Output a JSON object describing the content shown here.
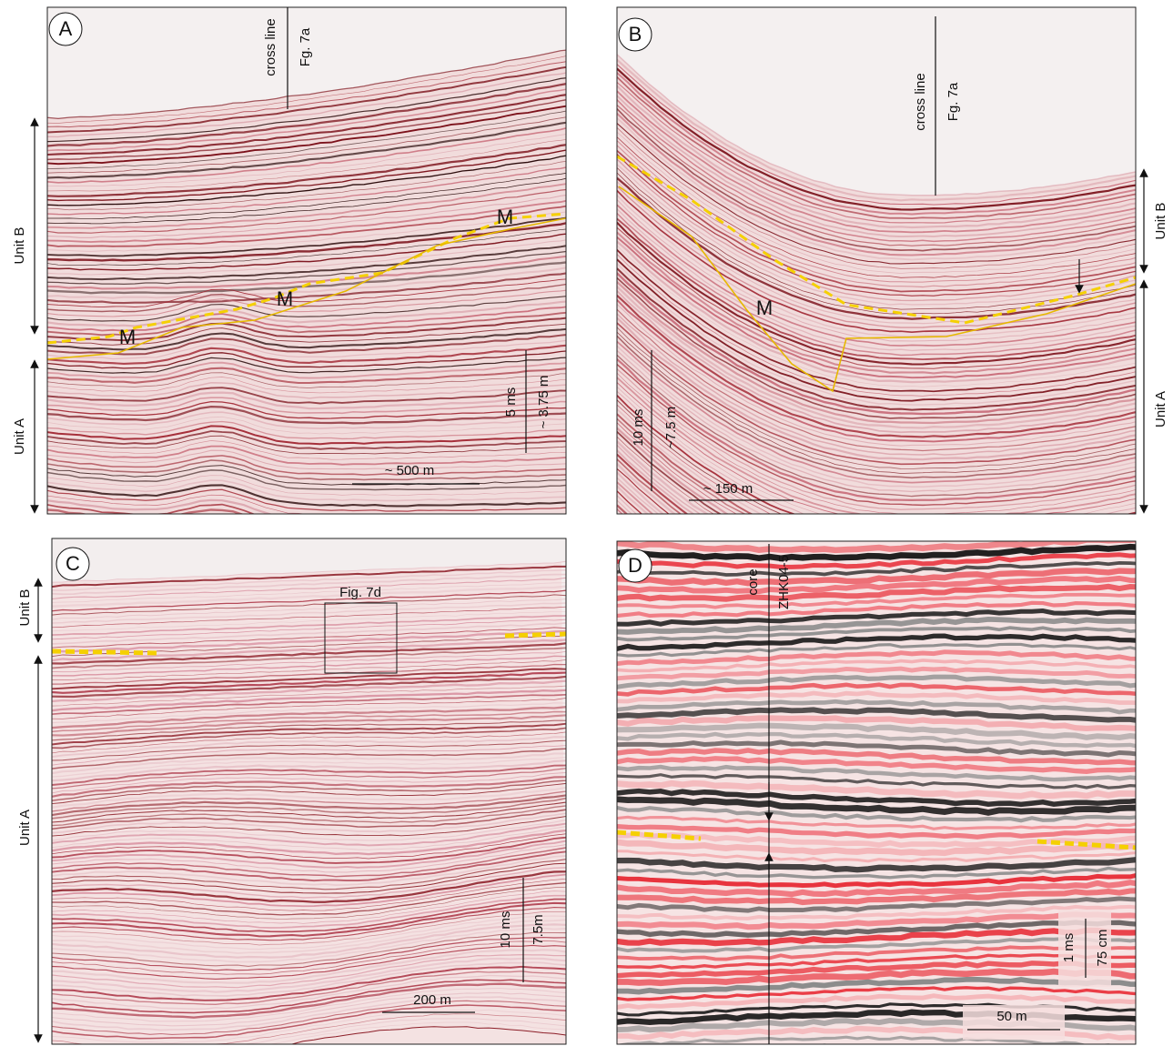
{
  "panels": [
    {
      "label": "A",
      "cross_line": [
        "cross line",
        "Fg. 7a"
      ],
      "units": [
        "Unit B",
        "Unit A"
      ],
      "markers": [
        "M",
        "M",
        "M"
      ],
      "scale_vertical": [
        "5 ms",
        "~ 3.75 m"
      ],
      "scale_horizontal": "~ 500 m"
    },
    {
      "label": "B",
      "cross_line": [
        "cross line",
        "Fg. 7a"
      ],
      "units": [
        "Unit B",
        "Unit A"
      ],
      "markers": [
        "M"
      ],
      "scale_vertical": [
        "10 ms",
        "~7.5 m"
      ],
      "scale_horizontal": "~ 150 m"
    },
    {
      "label": "C",
      "box": "Fig. 7d",
      "units": [
        "Unit B",
        "Unit A"
      ],
      "scale_vertical": [
        "10 ms",
        "7.5m"
      ],
      "scale_horizontal": "200 m"
    },
    {
      "label": "D",
      "core": [
        "core",
        "ZHK04-5"
      ],
      "scale_vertical": [
        "1 ms",
        "75 cm"
      ],
      "scale_horizontal": "50 m"
    }
  ]
}
